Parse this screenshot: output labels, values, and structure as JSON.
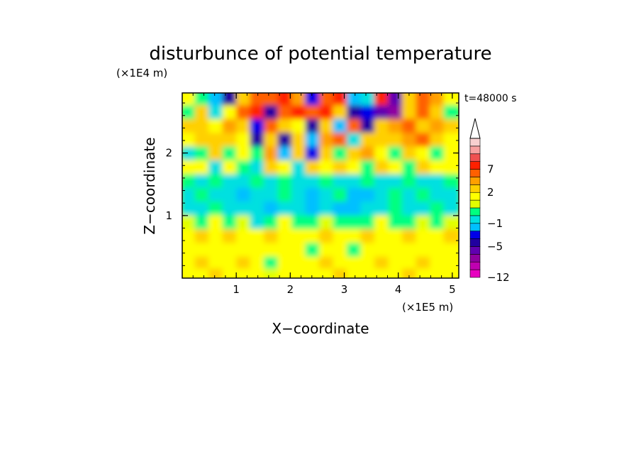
{
  "chart_data": {
    "type": "heatmap",
    "title": "disturbunce of potential temperature",
    "time_label": "t=48000 s",
    "xlabel": "X−coordinate",
    "ylabel": "Z−coordinate",
    "x_scale_label": "(×1E5 m)",
    "y_scale_label": "(×1E4 m)",
    "xlim": [
      0,
      5.12
    ],
    "ylim": [
      0,
      2.96
    ],
    "x_ticks": [
      "1",
      "2",
      "3",
      "4",
      "5"
    ],
    "x_tick_values": [
      1,
      2,
      3,
      4,
      5
    ],
    "y_ticks": [
      "1",
      "2"
    ],
    "y_tick_values": [
      1,
      2
    ],
    "colorbar": {
      "tick_labels": [
        "7",
        "2",
        "−1",
        "−5",
        "−12"
      ],
      "tick_levels": [
        7,
        2,
        -1,
        -5,
        -12
      ],
      "colors_bottom_to_top": [
        "#e800c0",
        "#c000b0",
        "#9000a0",
        "#6000b0",
        "#2000a0",
        "#0000e8",
        "#00c0ff",
        "#00e0e0",
        "#00ff80",
        "#e0ff00",
        "#ffff00",
        "#ffd000",
        "#ffa000",
        "#ff6000",
        "#ff2000",
        "#f05050",
        "#f8a0a0",
        "#f8d0d0"
      ],
      "extends_top": true
    },
    "colormap": [
      {
        "level": -12,
        "color": "#e800c0"
      },
      {
        "level": -10,
        "color": "#c000b0"
      },
      {
        "level": -8,
        "color": "#9000a0"
      },
      {
        "level": -6.5,
        "color": "#6000b0"
      },
      {
        "level": -5,
        "color": "#2000a0"
      },
      {
        "level": -3.5,
        "color": "#0000e8"
      },
      {
        "level": -2,
        "color": "#00c0ff"
      },
      {
        "level": -1,
        "color": "#00e0e0"
      },
      {
        "level": -0.5,
        "color": "#00ff80"
      },
      {
        "level": 0.3,
        "color": "#e0ff00"
      },
      {
        "level": 1,
        "color": "#ffff00"
      },
      {
        "level": 2,
        "color": "#ffd000"
      },
      {
        "level": 3.5,
        "color": "#ffa000"
      },
      {
        "level": 5,
        "color": "#ff6000"
      },
      {
        "level": 7,
        "color": "#ff2000"
      },
      {
        "level": 8.5,
        "color": "#f05050"
      },
      {
        "level": 10,
        "color": "#f8a0a0"
      },
      {
        "level": 12,
        "color": "#f8d0d0"
      }
    ],
    "field_grid": {
      "x_centers": [
        0.128,
        0.384,
        0.64,
        0.896,
        1.152,
        1.408,
        1.664,
        1.92,
        2.176,
        2.432,
        2.688,
        2.944,
        3.2,
        3.456,
        3.712,
        3.968,
        4.224,
        4.48,
        4.736,
        4.992
      ],
      "z_centers": [
        2.85,
        2.63,
        2.41,
        2.19,
        1.97,
        1.75,
        1.53,
        1.31,
        1.09,
        0.87,
        0.65,
        0.43,
        0.21,
        0.05
      ],
      "values": [
        [
          1,
          0,
          -2,
          -4,
          3,
          5,
          6,
          7,
          4,
          -3,
          6,
          7,
          -2,
          -1,
          8,
          -6,
          2,
          5,
          4,
          1
        ],
        [
          0,
          2,
          -1,
          1,
          5,
          7,
          -4,
          6,
          8,
          6,
          7,
          3,
          -5,
          -3,
          -6,
          -7,
          3,
          5,
          2,
          0
        ],
        [
          2,
          3,
          1,
          4,
          2,
          -3,
          5,
          3,
          1,
          -5,
          2,
          -2,
          5,
          -4,
          3,
          4,
          5,
          3,
          4,
          2
        ],
        [
          1,
          2,
          3,
          2,
          1,
          -4,
          3,
          -5,
          2,
          -2,
          4,
          6,
          -1,
          2,
          3,
          2,
          4,
          6,
          2,
          1
        ],
        [
          -1,
          0,
          2,
          0,
          1,
          0,
          4,
          -2,
          3,
          -3,
          3,
          0,
          2,
          4,
          1,
          0,
          2,
          1,
          0,
          1
        ],
        [
          1,
          1,
          -1,
          1,
          0,
          -1,
          2,
          1,
          -1,
          2,
          1,
          2,
          1,
          0,
          2,
          1,
          0,
          2,
          1,
          1
        ],
        [
          -0.5,
          -1,
          -0.5,
          -1,
          -1,
          -0.5,
          -1,
          -0.5,
          -1,
          -1,
          -0.5,
          -1,
          -1,
          -0.5,
          -1,
          -1,
          -0.5,
          -1,
          -1,
          -0.5
        ],
        [
          -1,
          -0.5,
          -1,
          -1,
          -2,
          -1,
          -1,
          -0.5,
          -1,
          -2,
          -1,
          -0.5,
          -2,
          -2,
          -1,
          -0.5,
          -1,
          -0.5,
          -1,
          -1
        ],
        [
          -1,
          -1,
          -0.5,
          -1,
          -1,
          -1,
          -2,
          -1,
          -1,
          -2,
          -1,
          -2,
          -2,
          -1,
          -1,
          -0.5,
          -1,
          -1,
          -0.5,
          -1
        ],
        [
          0.3,
          -0.5,
          1,
          -0.5,
          0.3,
          -1,
          -0.5,
          1,
          -0.5,
          -0.5,
          0.3,
          -0.5,
          -0.5,
          -0.5,
          1,
          -0.5,
          -0.5,
          0.3,
          -0.5,
          0.3
        ],
        [
          1,
          2,
          1,
          2,
          1,
          1,
          2,
          1,
          1,
          1,
          2,
          1,
          1,
          2,
          1,
          1,
          2,
          1,
          1,
          2
        ],
        [
          1,
          1,
          1,
          1,
          1,
          1,
          1,
          1,
          1,
          -0.5,
          1,
          1,
          -0.5,
          1,
          1,
          1,
          1,
          1,
          1,
          1
        ],
        [
          1,
          2,
          1,
          1,
          2,
          1,
          -0.5,
          1,
          1,
          1,
          2,
          1,
          1,
          1,
          2,
          1,
          1,
          2,
          1,
          1
        ],
        [
          1,
          1,
          2,
          1,
          1,
          1,
          0.3,
          1,
          1,
          1,
          1,
          2,
          1,
          1,
          1,
          1,
          2,
          1,
          1,
          1
        ]
      ]
    }
  }
}
